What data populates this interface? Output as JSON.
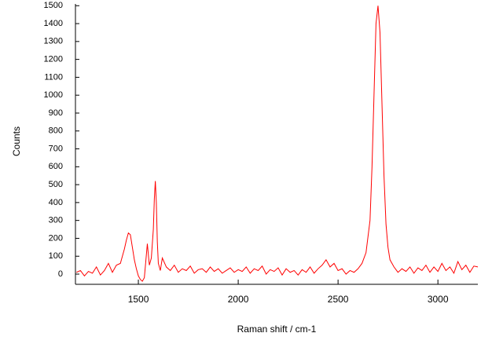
{
  "chart_data": {
    "type": "line",
    "x_label": "Raman shift / cm-1",
    "y_label": "Counts",
    "xlim": [
      1185,
      3200
    ],
    "ylim": [
      -57,
      1510
    ],
    "xticks": [
      1500,
      2000,
      2500,
      3000
    ],
    "yticks": [
      0,
      100,
      200,
      300,
      400,
      500,
      600,
      700,
      800,
      900,
      1000,
      1100,
      1200,
      1300,
      1400,
      1500
    ],
    "x": [
      1190,
      1210,
      1230,
      1250,
      1270,
      1290,
      1310,
      1330,
      1350,
      1370,
      1390,
      1410,
      1430,
      1440,
      1450,
      1460,
      1470,
      1480,
      1490,
      1500,
      1510,
      1520,
      1530,
      1545,
      1555,
      1565,
      1575,
      1580,
      1585,
      1590,
      1595,
      1600,
      1610,
      1620,
      1640,
      1660,
      1680,
      1700,
      1720,
      1740,
      1760,
      1780,
      1800,
      1820,
      1840,
      1860,
      1880,
      1900,
      1920,
      1940,
      1960,
      1980,
      2000,
      2020,
      2040,
      2060,
      2080,
      2100,
      2120,
      2140,
      2160,
      2180,
      2200,
      2220,
      2240,
      2260,
      2280,
      2300,
      2320,
      2340,
      2360,
      2380,
      2400,
      2420,
      2440,
      2460,
      2480,
      2500,
      2520,
      2540,
      2560,
      2580,
      2600,
      2620,
      2640,
      2660,
      2670,
      2680,
      2690,
      2700,
      2710,
      2720,
      2730,
      2740,
      2750,
      2760,
      2780,
      2800,
      2820,
      2840,
      2860,
      2880,
      2900,
      2920,
      2940,
      2960,
      2980,
      3000,
      3020,
      3040,
      3060,
      3080,
      3100,
      3120,
      3140,
      3160,
      3180,
      3200
    ],
    "series": [
      {
        "color": "#ff0000",
        "values": [
          10,
          20,
          -10,
          15,
          5,
          40,
          -5,
          20,
          60,
          10,
          50,
          60,
          140,
          190,
          230,
          220,
          150,
          80,
          30,
          -10,
          -30,
          -40,
          -20,
          170,
          50,
          90,
          250,
          420,
          520,
          400,
          180,
          60,
          20,
          90,
          40,
          20,
          50,
          10,
          30,
          20,
          45,
          5,
          25,
          30,
          10,
          40,
          15,
          30,
          5,
          20,
          35,
          10,
          25,
          15,
          40,
          5,
          30,
          20,
          45,
          0,
          25,
          15,
          35,
          -5,
          30,
          10,
          20,
          -5,
          25,
          10,
          40,
          5,
          30,
          50,
          80,
          40,
          60,
          20,
          30,
          0,
          20,
          10,
          30,
          60,
          120,
          300,
          600,
          1000,
          1400,
          1500,
          1350,
          950,
          550,
          280,
          150,
          80,
          40,
          10,
          30,
          15,
          40,
          5,
          35,
          20,
          50,
          10,
          40,
          15,
          60,
          20,
          40,
          5,
          70,
          25,
          50,
          10,
          45,
          40
        ]
      }
    ]
  }
}
